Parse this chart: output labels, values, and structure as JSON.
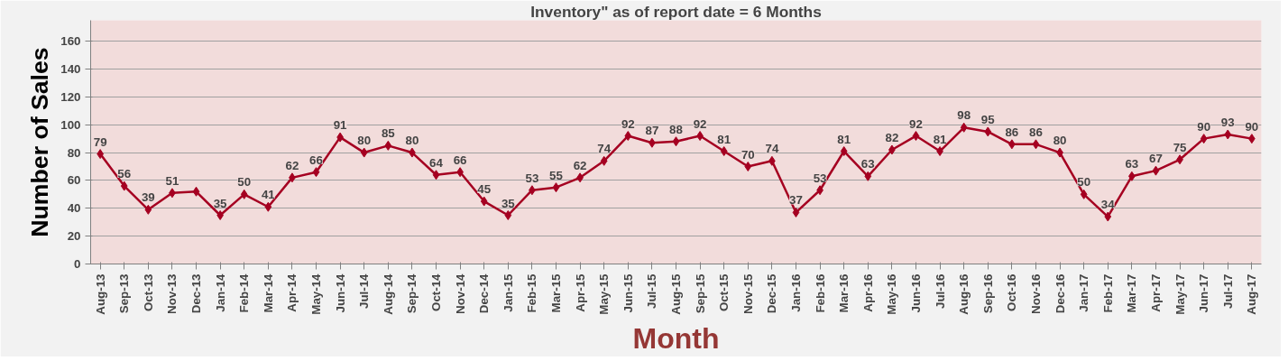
{
  "chart_data": {
    "type": "line",
    "title": "Inventory\" as of report date = 6 Months",
    "xlabel": "Month",
    "ylabel": "Number of Sales",
    "categories": [
      "Aug-13",
      "Sep-13",
      "Oct-13",
      "Nov-13",
      "Dec-13",
      "Jan-14",
      "Feb-14",
      "Mar-14",
      "Apr-14",
      "May-14",
      "Jun-14",
      "Jul-14",
      "Aug-14",
      "Sep-14",
      "Oct-14",
      "Nov-14",
      "Dec-14",
      "Jan-15",
      "Feb-15",
      "Mar-15",
      "Apr-15",
      "May-15",
      "Jun-15",
      "Jul-15",
      "Aug-15",
      "Sep-15",
      "Oct-15",
      "Nov-15",
      "Dec-15",
      "Jan-16",
      "Feb-16",
      "Mar-16",
      "Apr-16",
      "May-16",
      "Jun-16",
      "Jul-16",
      "Aug-16",
      "Sep-16",
      "Oct-16",
      "Nov-16",
      "Dec-16",
      "Jan-17",
      "Feb-17",
      "Mar-17",
      "Apr-17",
      "May-17",
      "Jun-17",
      "Jul-17",
      "Aug-17"
    ],
    "values": [
      79,
      56,
      39,
      51,
      52,
      35,
      50,
      41,
      62,
      66,
      91,
      80,
      85,
      80,
      64,
      66,
      45,
      35,
      53,
      55,
      62,
      74,
      92,
      87,
      88,
      92,
      81,
      70,
      74,
      37,
      53,
      81,
      63,
      82,
      92,
      81,
      98,
      95,
      86,
      86,
      80,
      50,
      34,
      63,
      67,
      75,
      90,
      93,
      90
    ],
    "value_labels": [
      "79",
      "56",
      "39",
      "51",
      null,
      "35",
      "50",
      "41",
      "62",
      "66",
      "91",
      "80",
      "85",
      "80",
      "64",
      "66",
      "45",
      "35",
      "53",
      "55",
      "62",
      "74",
      "92",
      "87",
      "88",
      "92",
      "81",
      "70",
      "74",
      "37",
      "53",
      "81",
      "63",
      "82",
      "92",
      "81",
      "98",
      "95",
      "86",
      "86",
      "80",
      "50",
      "34",
      "63",
      "67",
      "75",
      "90",
      "93",
      "90"
    ],
    "color": "#a50021",
    "marker": "diamond",
    "line_style": "solid",
    "grid": "y",
    "ylim": [
      0,
      175
    ],
    "yticks": [
      0,
      20,
      40,
      60,
      80,
      100,
      120,
      140,
      160
    ]
  }
}
